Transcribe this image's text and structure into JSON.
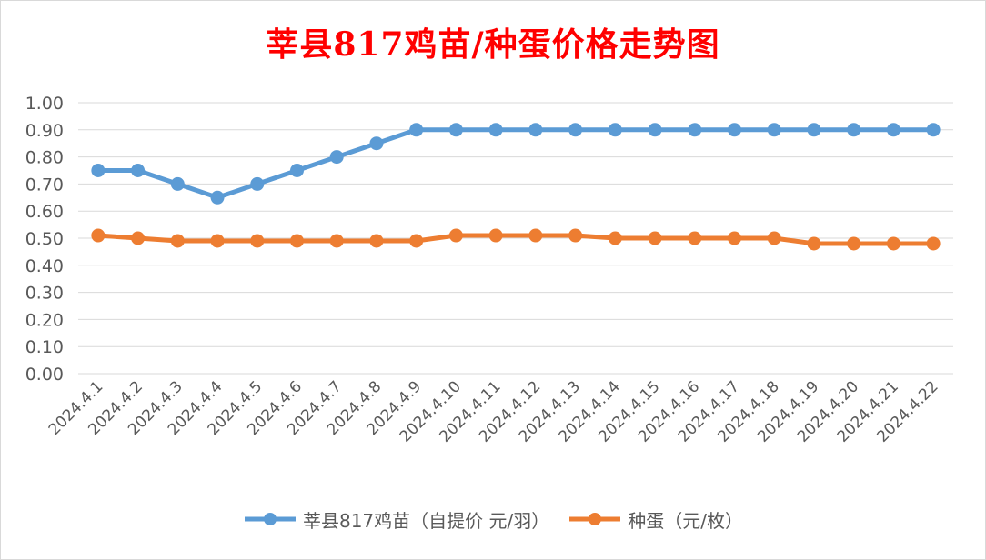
{
  "title": "莘县817鸡苗/种蛋价格走势图",
  "colors": {
    "series_0": "#5b9bd5",
    "series_1": "#ed7d31",
    "gridline": "#d9d9d9",
    "title": "#ff0000"
  },
  "chart_data": {
    "type": "line",
    "title": "莘县817鸡苗/种蛋价格走势图",
    "categories": [
      "2024.4.1",
      "2024.4.2",
      "2024.4.3",
      "2024.4.4",
      "2024.4.5",
      "2024.4.6",
      "2024.4.7",
      "2024.4.8",
      "2024.4.9",
      "2024.4.10",
      "2024.4.11",
      "2024.4.12",
      "2024.4.13",
      "2024.4.14",
      "2024.4.15",
      "2024.4.16",
      "2024.4.17",
      "2024.4.18",
      "2024.4.19",
      "2024.4.20",
      "2024.4.21",
      "2024.4.22"
    ],
    "series": [
      {
        "name": "莘县817鸡苗（自提价 元/羽）",
        "values": [
          0.75,
          0.75,
          0.7,
          0.65,
          0.7,
          0.75,
          0.8,
          0.85,
          0.9,
          0.9,
          0.9,
          0.9,
          0.9,
          0.9,
          0.9,
          0.9,
          0.9,
          0.9,
          0.9,
          0.9,
          0.9,
          0.9
        ]
      },
      {
        "name": "种蛋（元/枚）",
        "values": [
          0.51,
          0.5,
          0.49,
          0.49,
          0.49,
          0.49,
          0.49,
          0.49,
          0.49,
          0.51,
          0.51,
          0.51,
          0.51,
          0.5,
          0.5,
          0.5,
          0.5,
          0.5,
          0.48,
          0.48,
          0.48,
          0.48
        ]
      }
    ],
    "yticks": [
      "0.00",
      "0.10",
      "0.20",
      "0.30",
      "0.40",
      "0.50",
      "0.60",
      "0.70",
      "0.80",
      "0.90",
      "1.00"
    ],
    "ylim": [
      0,
      1
    ],
    "xlabel": "",
    "ylabel": "",
    "grid": true,
    "legend": "bottom"
  }
}
